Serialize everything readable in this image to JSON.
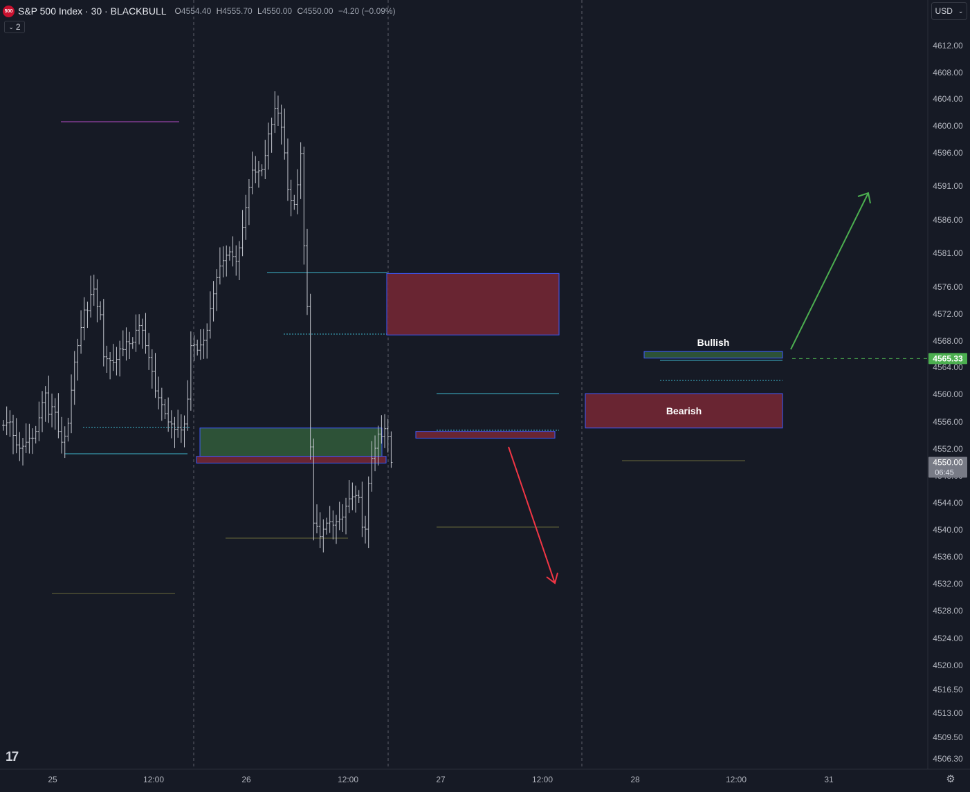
{
  "header": {
    "badge": "500",
    "title": "S&P 500 Index · 30 · BLACKBULL",
    "ohlc": {
      "open_label": "O",
      "open": "4554.40",
      "high_label": "H",
      "high": "4555.70",
      "low_label": "L",
      "low": "4550.00",
      "close_label": "C",
      "close": "4550.00",
      "change": "−4.20 (−0.09%)"
    }
  },
  "collapse_button": {
    "label": "2",
    "icon": "chevron-down-icon"
  },
  "currency_select": {
    "value": "USD",
    "icon": "chevron-down-icon"
  },
  "logo_text": "17",
  "settings_icon": "gear-icon",
  "chart_data": {
    "type": "candlestick",
    "symbol": "S&P 500 Index",
    "interval": "30",
    "y_axis": {
      "ticks": [
        "4612.00",
        "4608.00",
        "4604.00",
        "4600.00",
        "4596.00",
        "4591.00",
        "4586.00",
        "4581.00",
        "4576.00",
        "4572.00",
        "4568.00",
        "4564.00",
        "4560.00",
        "4556.00",
        "4552.00",
        "4548.00",
        "4544.00",
        "4540.00",
        "4536.00",
        "4532.00",
        "4528.00",
        "4524.00",
        "4520.00",
        "4516.50",
        "4513.00",
        "4509.50",
        "4506.30"
      ],
      "range": [
        4505,
        4615
      ]
    },
    "x_axis": {
      "ticks": [
        "25",
        "12:00",
        "26",
        "12:00",
        "27",
        "12:00",
        "28",
        "12:00",
        "31"
      ]
    },
    "last_price": {
      "value": "4550.00",
      "countdown": "06:45"
    },
    "target_price": {
      "value": "4565.33",
      "color": "#4caf50"
    },
    "zones": [
      {
        "label": "Bullish",
        "kind": "bullish",
        "from": 4565.4,
        "to": 4566.4
      },
      {
        "label": "Bearish",
        "kind": "bearish",
        "from": 4555.1,
        "to": 4560.1
      },
      {
        "label": "",
        "kind": "bearish",
        "from": 4568.9,
        "to": 4578.0
      },
      {
        "label": "",
        "kind": "bullish",
        "from": 4550.9,
        "to": 4555.1
      },
      {
        "label": "",
        "kind": "bearish",
        "from": 4549.9,
        "to": 4550.9
      },
      {
        "label": "",
        "kind": "bearish",
        "from": 4553.6,
        "to": 4554.6
      }
    ],
    "arrows": [
      {
        "direction": "up",
        "color": "#4caf50"
      },
      {
        "direction": "down",
        "color": "#f23645"
      }
    ],
    "candles_close_path": [
      4555.5,
      4555.9,
      4556.0,
      4554.0,
      4552.6,
      4552.1,
      4552.4,
      4553.0,
      4553.6,
      4553.6,
      4554.6,
      4556.6,
      4558.8,
      4560.2,
      4557.1,
      4558.2,
      4557.4,
      4554.6,
      4553.0,
      4553.9,
      4555.8,
      4560.6,
      4564.8,
      4567.3,
      4570.0,
      4572.6,
      4572.5,
      4574.9,
      4575.7,
      4573.1,
      4571.9,
      4565.6,
      4565.3,
      4565.0,
      4564.7,
      4565.2,
      4566.8,
      4566.7,
      4567.9,
      4567.6,
      4567.8,
      4569.6,
      4570.3,
      4569.6,
      4567.3,
      4565.5,
      4563.4,
      4560.5,
      4559.5,
      4558.5,
      4557.2,
      4556.0,
      4555.7,
      4554.9,
      4555.2,
      4554.8,
      4555.7,
      4559.3,
      4567.3,
      4567.4,
      4566.6,
      4567.4,
      4568.1,
      4569.6,
      4572.8,
      4575.0,
      4577.4,
      4579.1,
      4579.9,
      4580.7,
      4581.2,
      4580.5,
      4579.8,
      4581.8,
      4584.9,
      4587.8,
      4590.8,
      4593.4,
      4593.1,
      4593.3,
      4593.5,
      4595.6,
      4598.8,
      4600.2,
      4602.6,
      4601.9,
      4599.8,
      4596.0,
      4590.5,
      4588.9,
      4588.3,
      4591.2,
      4595.9,
      4582.1,
      4573.1,
      4552.3,
      4541.0,
      4540.5,
      4539.0,
      4540.1,
      4541.0,
      4541.2,
      4540.7,
      4541.2,
      4541.6,
      4541.9,
      4543.5,
      4544.6,
      4544.9,
      4545.1,
      4544.8,
      4540.4,
      4540.1,
      4546.9,
      4550.6,
      4552.1,
      4554.2,
      4553.8,
      4555.0,
      4553.8,
      4550.0
    ]
  }
}
